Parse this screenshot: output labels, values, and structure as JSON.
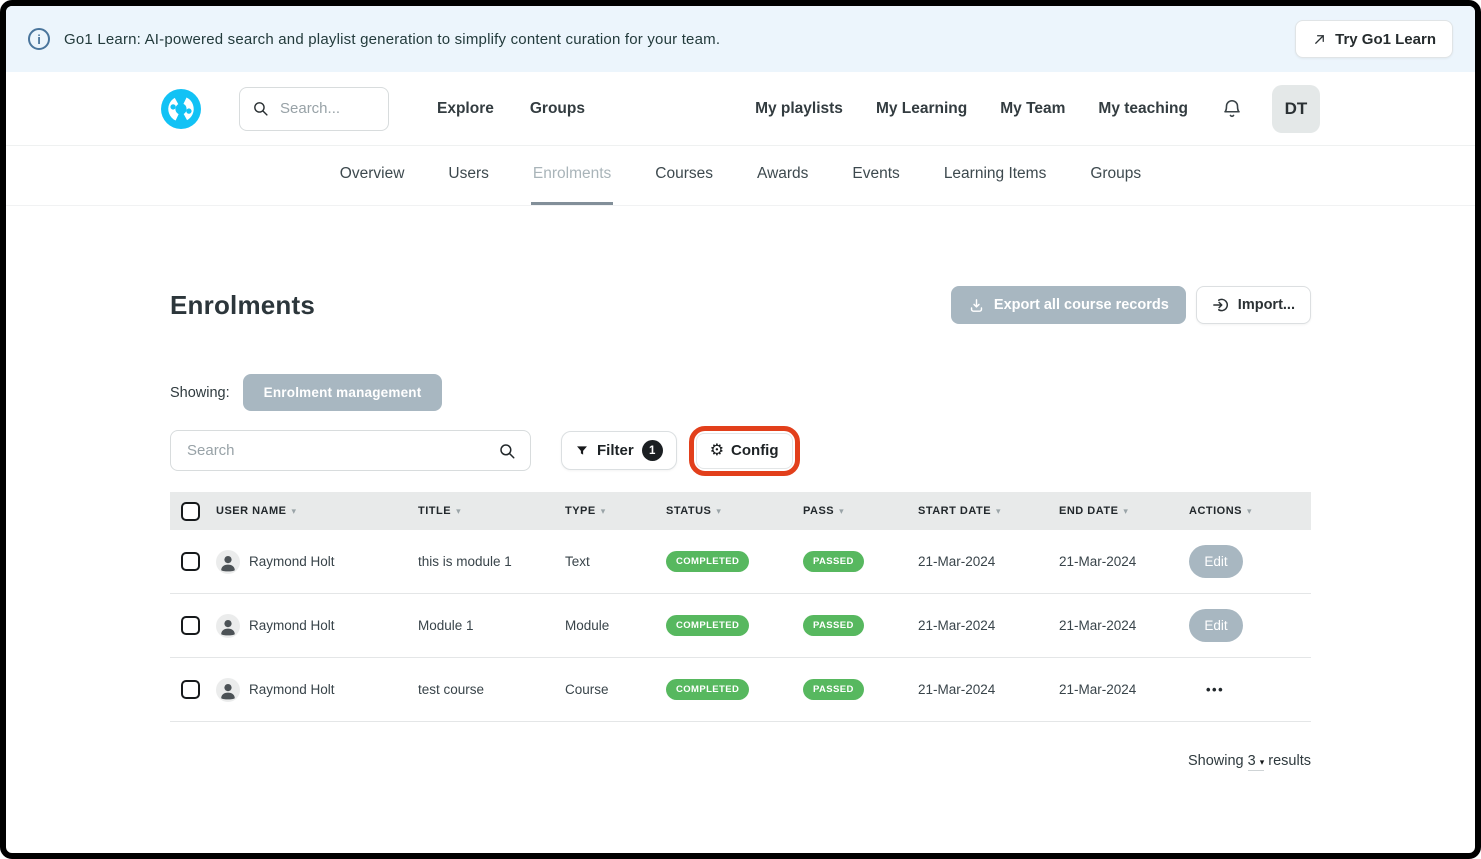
{
  "banner": {
    "message": "Go1 Learn: AI-powered search and playlist generation to simplify content curation for your team.",
    "cta_label": "Try Go1 Learn"
  },
  "header": {
    "search_placeholder": "Search...",
    "nav_left": [
      {
        "label": "Explore"
      },
      {
        "label": "Groups"
      }
    ],
    "nav_right": [
      {
        "label": "My playlists"
      },
      {
        "label": "My Learning"
      },
      {
        "label": "My Team"
      },
      {
        "label": "My teaching"
      }
    ],
    "avatar_initials": "DT"
  },
  "tabs": [
    {
      "label": "Overview",
      "active": false
    },
    {
      "label": "Users",
      "active": false
    },
    {
      "label": "Enrolments",
      "active": true
    },
    {
      "label": "Courses",
      "active": false
    },
    {
      "label": "Awards",
      "active": false
    },
    {
      "label": "Events",
      "active": false
    },
    {
      "label": "Learning Items",
      "active": false
    },
    {
      "label": "Groups",
      "active": false
    }
  ],
  "page": {
    "title": "Enrolments",
    "export_label": "Export all course records",
    "import_label": "Import...",
    "showing_label": "Showing:",
    "view_chip": "Enrolment management",
    "search_placeholder": "Search",
    "filter_label": "Filter",
    "filter_count": "1",
    "config_label": "Config"
  },
  "table": {
    "columns": [
      "USER NAME",
      "TITLE",
      "TYPE",
      "STATUS",
      "PASS",
      "START DATE",
      "END DATE",
      "ACTIONS"
    ],
    "rows": [
      {
        "user": "Raymond Holt",
        "title": "this is module 1",
        "type": "Text",
        "status": "COMPLETED",
        "pass": "PASSED",
        "start_date": "21-Mar-2024",
        "end_date": "21-Mar-2024",
        "action": "Edit"
      },
      {
        "user": "Raymond Holt",
        "title": "Module 1",
        "type": "Module",
        "status": "COMPLETED",
        "pass": "PASSED",
        "start_date": "21-Mar-2024",
        "end_date": "21-Mar-2024",
        "action": "Edit"
      },
      {
        "user": "Raymond Holt",
        "title": "test course",
        "type": "Course",
        "status": "COMPLETED",
        "pass": "PASSED",
        "start_date": "21-Mar-2024",
        "end_date": "21-Mar-2024",
        "action": "..."
      }
    ]
  },
  "footer": {
    "showing_prefix": "Showing",
    "count": "3",
    "results_suffix": "results"
  },
  "icons": {
    "info": "i",
    "config_gear": "⚙",
    "sort_caret": "▾",
    "caret_down": "▾",
    "ellipsis": "•••"
  },
  "colors": {
    "brand_cyan": "#12c2f5",
    "banner_bg": "#ecf5fc",
    "badge_green": "#57b85f",
    "muted_button_gray": "#a8b7c1",
    "highlight_ring_red": "#e23f1b"
  }
}
